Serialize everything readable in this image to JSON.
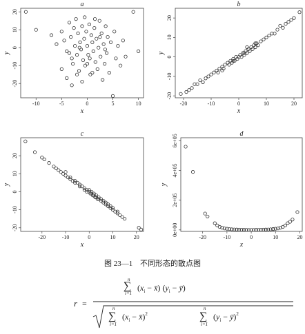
{
  "chart_data": [
    {
      "type": "scatter",
      "title": "a",
      "xlabel": "x",
      "ylabel": "y",
      "xlim": [
        -13,
        11
      ],
      "ylim": [
        -28,
        22
      ],
      "xticks": [
        -10,
        -5,
        0,
        5,
        10
      ],
      "yticks": [
        -20,
        -10,
        0,
        10,
        20
      ],
      "points": [
        [
          -12,
          20
        ],
        [
          -10,
          10
        ],
        [
          -7,
          7
        ],
        [
          -6,
          2
        ],
        [
          -5,
          9
        ],
        [
          -4.5,
          4
        ],
        [
          -4,
          -2
        ],
        [
          -3.5,
          14
        ],
        [
          -3.2,
          6
        ],
        [
          -3,
          -6
        ],
        [
          -2.8,
          -9
        ],
        [
          -2.6,
          11
        ],
        [
          -2.4,
          1
        ],
        [
          -2.2,
          16
        ],
        [
          -2,
          -4
        ],
        [
          -1.8,
          8
        ],
        [
          -1.6,
          -13
        ],
        [
          -1.4,
          3
        ],
        [
          -1.2,
          -1
        ],
        [
          -1,
          12
        ],
        [
          -0.8,
          -7
        ],
        [
          -0.6,
          5
        ],
        [
          -0.4,
          -10
        ],
        [
          -0.2,
          9
        ],
        [
          0,
          1
        ],
        [
          0.2,
          -4
        ],
        [
          0.4,
          13
        ],
        [
          0.6,
          -15
        ],
        [
          0.8,
          7
        ],
        [
          1,
          3
        ],
        [
          1.2,
          -2
        ],
        [
          1.4,
          11
        ],
        [
          1.6,
          -8
        ],
        [
          1.8,
          5
        ],
        [
          2,
          -12
        ],
        [
          2.2,
          0
        ],
        [
          2.4,
          15
        ],
        [
          2.6,
          -5
        ],
        [
          2.8,
          8
        ],
        [
          3,
          -18
        ],
        [
          3.2,
          2
        ],
        [
          3.4,
          -9
        ],
        [
          3.6,
          12
        ],
        [
          3.8,
          -3
        ],
        [
          4,
          6
        ],
        [
          4.3,
          -14
        ],
        [
          4.6,
          3
        ],
        [
          5,
          -27
        ],
        [
          5.3,
          9
        ],
        [
          5.6,
          -6
        ],
        [
          6,
          1
        ],
        [
          6.5,
          -10
        ],
        [
          7,
          4
        ],
        [
          7.5,
          -5
        ],
        [
          9,
          20
        ],
        [
          10,
          -2
        ],
        [
          -4,
          -17
        ],
        [
          -3,
          -21
        ],
        [
          -1,
          -19
        ],
        [
          1,
          -14
        ],
        [
          -5,
          -12
        ],
        [
          -2,
          -15
        ],
        [
          0.5,
          -6
        ],
        [
          1.5,
          16
        ],
        [
          -0.5,
          17
        ],
        [
          2.5,
          6
        ],
        [
          -3.5,
          -3
        ],
        [
          3.5,
          -1
        ],
        [
          -1.5,
          0
        ],
        [
          0,
          -9
        ]
      ]
    },
    {
      "type": "scatter",
      "title": "b",
      "xlabel": "x",
      "ylabel": "y",
      "xlim": [
        -23,
        23
      ],
      "ylim": [
        -21,
        25
      ],
      "xticks": [
        -20,
        -10,
        0,
        10,
        20
      ],
      "yticks": [
        -20,
        -10,
        0,
        10,
        20
      ],
      "points": [
        [
          -21,
          -19
        ],
        [
          -19,
          -18
        ],
        [
          -17,
          -16
        ],
        [
          -15,
          -14
        ],
        [
          -14,
          -12
        ],
        [
          -12,
          -11
        ],
        [
          -11,
          -10
        ],
        [
          -10,
          -9
        ],
        [
          -9,
          -8
        ],
        [
          -8,
          -7
        ],
        [
          -7.5,
          -8
        ],
        [
          -7,
          -6
        ],
        [
          -6,
          -5
        ],
        [
          -5.5,
          -6
        ],
        [
          -5,
          -4
        ],
        [
          -4,
          -3
        ],
        [
          -3.5,
          -4
        ],
        [
          -3,
          -2
        ],
        [
          -2.5,
          -3
        ],
        [
          -2,
          -1
        ],
        [
          -1.5,
          -2
        ],
        [
          -1,
          0
        ],
        [
          -0.5,
          -1
        ],
        [
          0,
          0
        ],
        [
          0.5,
          1
        ],
        [
          1,
          0
        ],
        [
          1.5,
          2
        ],
        [
          2,
          1
        ],
        [
          2.5,
          3
        ],
        [
          3,
          2
        ],
        [
          3.5,
          4
        ],
        [
          4,
          3
        ],
        [
          4.5,
          5
        ],
        [
          5,
          4
        ],
        [
          5.5,
          6
        ],
        [
          6,
          5
        ],
        [
          6.5,
          7
        ],
        [
          7,
          6
        ],
        [
          8,
          8
        ],
        [
          9,
          9
        ],
        [
          10,
          10
        ],
        [
          11,
          11
        ],
        [
          12,
          12
        ],
        [
          14,
          14
        ],
        [
          16,
          15
        ],
        [
          17,
          17
        ],
        [
          19,
          19
        ],
        [
          20,
          20
        ],
        [
          22,
          23
        ],
        [
          -13,
          -13
        ],
        [
          -16,
          -14
        ],
        [
          -18,
          -17
        ],
        [
          13,
          12
        ],
        [
          15,
          16
        ],
        [
          18,
          18
        ],
        [
          -6,
          -7
        ],
        [
          6,
          7
        ],
        [
          -2,
          -2
        ],
        [
          2,
          2
        ],
        [
          3,
          5
        ]
      ]
    },
    {
      "type": "scatter",
      "title": "c",
      "xlabel": "x",
      "ylabel": "y",
      "xlim": [
        -29,
        23
      ],
      "ylim": [
        -22,
        30
      ],
      "xticks": [
        -20,
        -10,
        0,
        10,
        20
      ],
      "yticks": [
        -20,
        -10,
        0,
        10,
        20
      ],
      "points": [
        [
          -27,
          28
        ],
        [
          -23,
          22
        ],
        [
          -20,
          19
        ],
        [
          -19,
          18
        ],
        [
          -17,
          16
        ],
        [
          -15,
          14
        ],
        [
          -13,
          12
        ],
        [
          -12,
          11
        ],
        [
          -11,
          10
        ],
        [
          -10,
          9
        ],
        [
          -9,
          8
        ],
        [
          -8,
          8
        ],
        [
          -7,
          6
        ],
        [
          -6,
          6
        ],
        [
          -5,
          5
        ],
        [
          -4,
          4
        ],
        [
          -3,
          3
        ],
        [
          -2,
          2
        ],
        [
          -1,
          1
        ],
        [
          0,
          0
        ],
        [
          0.5,
          -1
        ],
        [
          1,
          -1
        ],
        [
          1.5,
          -2
        ],
        [
          2,
          -2
        ],
        [
          2.5,
          -3
        ],
        [
          3,
          -3
        ],
        [
          3.5,
          -4
        ],
        [
          4,
          -4
        ],
        [
          5,
          -5
        ],
        [
          6,
          -6
        ],
        [
          7,
          -7
        ],
        [
          8,
          -8
        ],
        [
          9,
          -9
        ],
        [
          10,
          -10
        ],
        [
          11,
          -11
        ],
        [
          12,
          -12
        ],
        [
          13,
          -13
        ],
        [
          14,
          -14
        ],
        [
          15,
          -15
        ],
        [
          21,
          -20
        ],
        [
          22,
          -21
        ],
        [
          -8,
          7
        ],
        [
          -6,
          5
        ],
        [
          -4,
          3
        ],
        [
          -2,
          1
        ],
        [
          0,
          1
        ],
        [
          2,
          -1
        ],
        [
          4,
          -3
        ],
        [
          6,
          -5
        ],
        [
          8,
          -7
        ],
        [
          10,
          -9
        ],
        [
          12,
          -11
        ],
        [
          -10,
          11
        ],
        [
          -14,
          13
        ],
        [
          -1,
          0
        ],
        [
          1,
          0
        ],
        [
          3,
          -2
        ],
        [
          5,
          -4
        ],
        [
          7,
          -6
        ],
        [
          9,
          -8
        ]
      ]
    },
    {
      "type": "scatter",
      "title": "d",
      "xlabel": "x",
      "ylabel": "y",
      "xlim": [
        -29,
        21
      ],
      "ylim": [
        -10000,
        620000
      ],
      "xticks": [
        -20,
        -10,
        0,
        10,
        20
      ],
      "yticks": [
        0,
        200000,
        400000,
        600000
      ],
      "ytick_labels": [
        "0e+00",
        "2e+05",
        "4e+05",
        "6e+05"
      ],
      "points": [
        [
          -27,
          560000
        ],
        [
          -24,
          390000
        ],
        [
          -19,
          110000
        ],
        [
          -18,
          90000
        ],
        [
          -15,
          45000
        ],
        [
          -14,
          30000
        ],
        [
          -13,
          20000
        ],
        [
          -12,
          15000
        ],
        [
          -11,
          10000
        ],
        [
          -10,
          8000
        ],
        [
          -9,
          6000
        ],
        [
          -8,
          4000
        ],
        [
          -7,
          3000
        ],
        [
          -6,
          2000
        ],
        [
          -5,
          1500
        ],
        [
          -4,
          1000
        ],
        [
          -3,
          500
        ],
        [
          -2,
          300
        ],
        [
          -1,
          100
        ],
        [
          0,
          0
        ],
        [
          1,
          100
        ],
        [
          2,
          300
        ],
        [
          3,
          500
        ],
        [
          4,
          1000
        ],
        [
          5,
          1500
        ],
        [
          6,
          2000
        ],
        [
          7,
          3000
        ],
        [
          8,
          4000
        ],
        [
          9,
          6000
        ],
        [
          10,
          8000
        ],
        [
          11,
          10000
        ],
        [
          12,
          15000
        ],
        [
          13,
          20000
        ],
        [
          14,
          30000
        ],
        [
          15,
          45000
        ],
        [
          16,
          55000
        ],
        [
          17,
          70000
        ],
        [
          19,
          120000
        ],
        [
          -8,
          3500
        ],
        [
          -6,
          2500
        ],
        [
          -3,
          800
        ],
        [
          2,
          200
        ],
        [
          6,
          2200
        ],
        [
          9,
          5000
        ]
      ]
    }
  ],
  "caption": {
    "number": "图 23—1",
    "text": "不同形态的散点图"
  }
}
